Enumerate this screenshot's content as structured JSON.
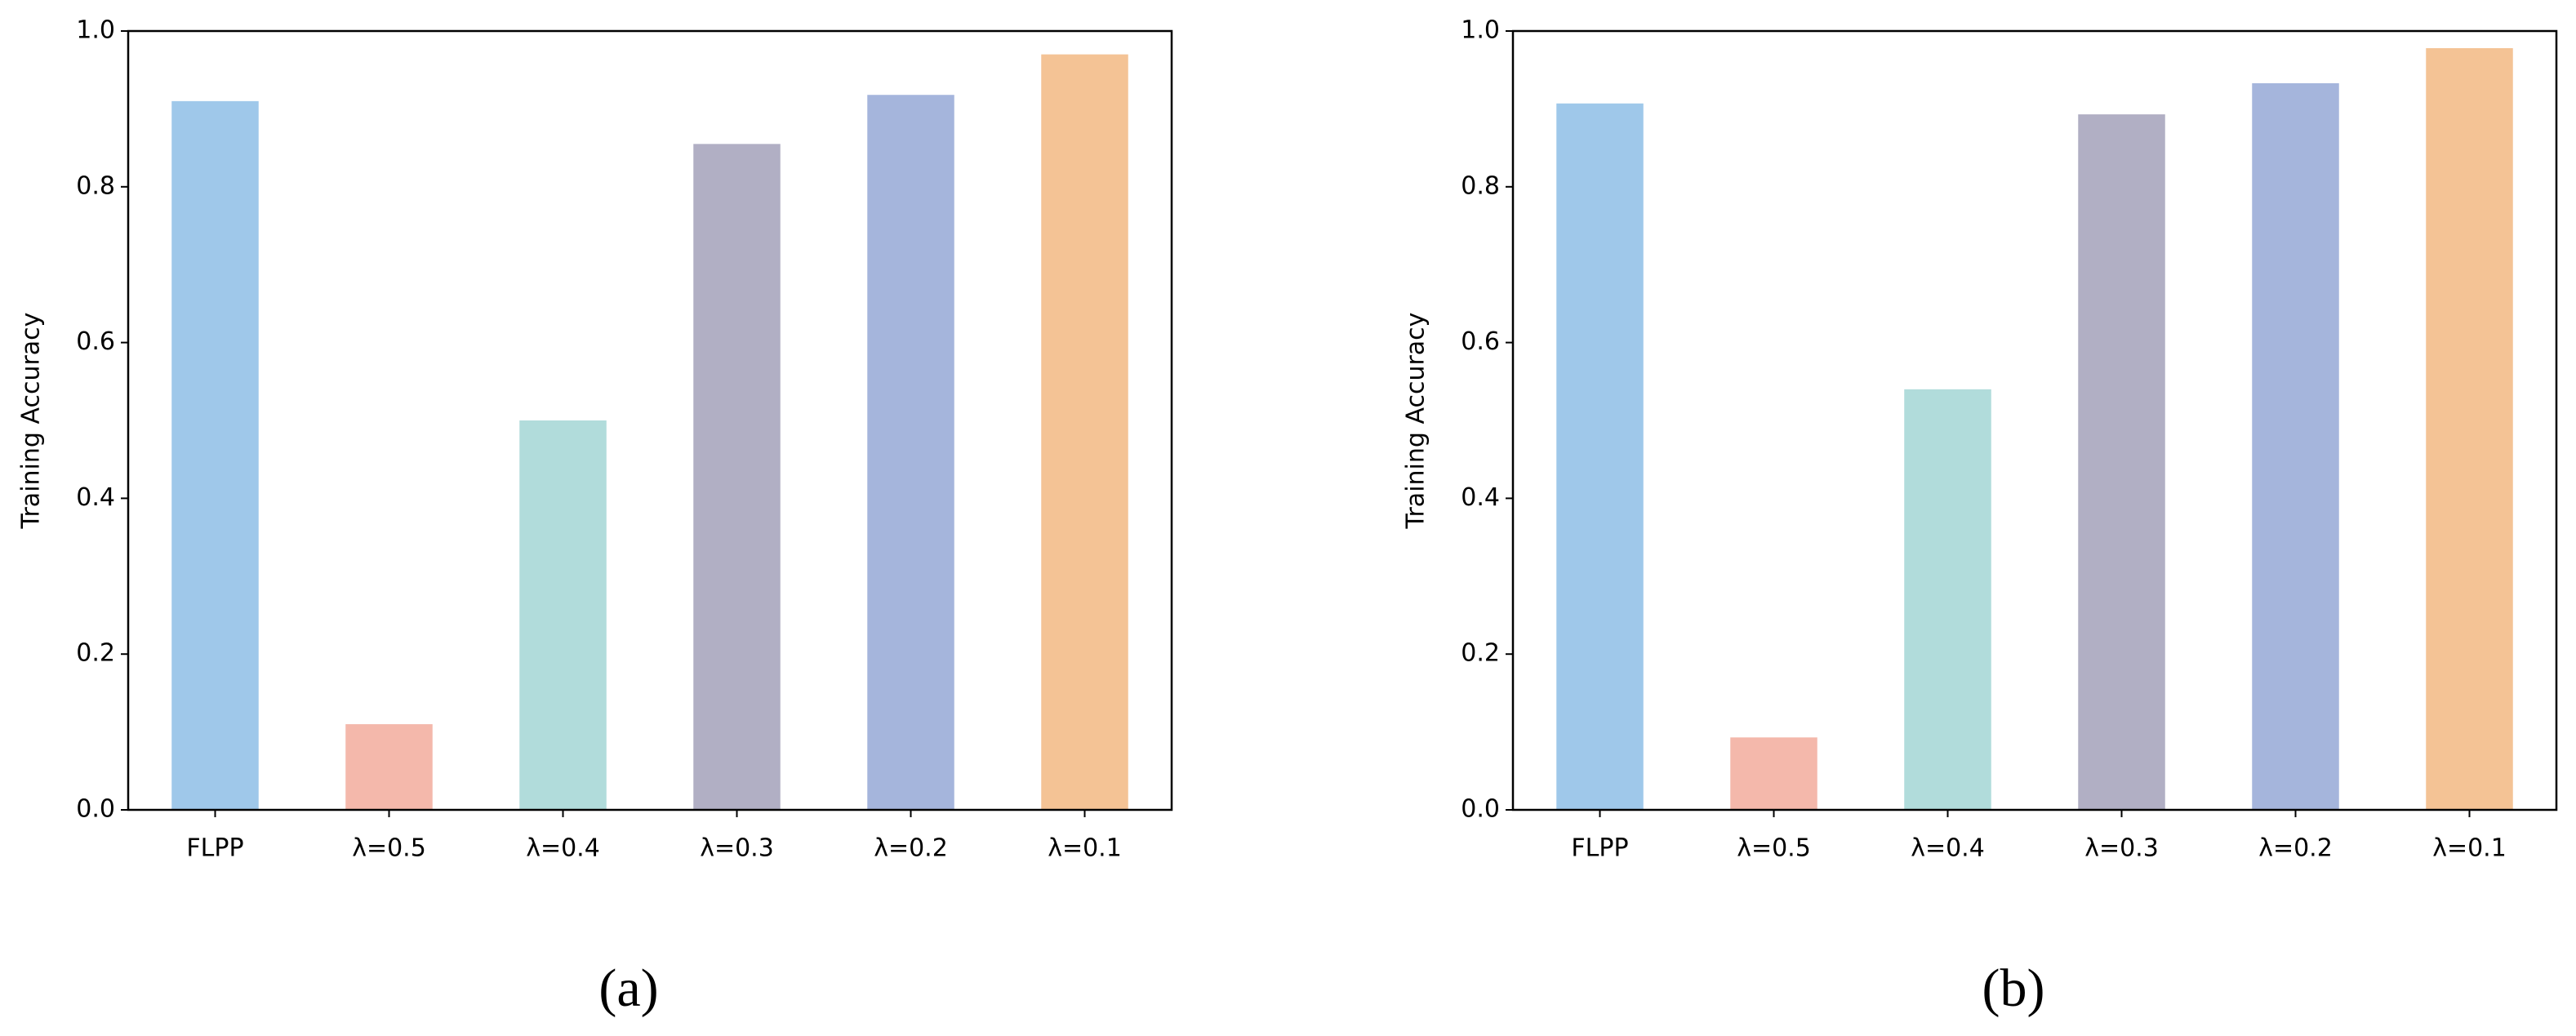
{
  "chart_data": [
    {
      "type": "bar",
      "ylabel": "Training Accuracy",
      "caption": "(a)",
      "categories": [
        "FLPP",
        "λ=0.5",
        "λ=0.4",
        "λ=0.3",
        "λ=0.2",
        "λ=0.1"
      ],
      "values": [
        0.91,
        0.11,
        0.5,
        0.855,
        0.918,
        0.97
      ],
      "colors": [
        "#9fc8ea",
        "#f4b8ab",
        "#b1dcdb",
        "#b1afc4",
        "#a5b5dc",
        "#f4c395"
      ],
      "ylim": [
        0,
        1
      ],
      "yticks": [
        {
          "value": 0,
          "label": "0.0"
        },
        0.2,
        0.4,
        0.6,
        0.8,
        {
          "value": 1,
          "label": "1.0"
        }
      ]
    },
    {
      "type": "bar",
      "ylabel": "Training Accuracy",
      "caption": "(b)",
      "categories": [
        "FLPP",
        "λ=0.5",
        "λ=0.4",
        "λ=0.3",
        "λ=0.2",
        "λ=0.1"
      ],
      "values": [
        0.907,
        0.093,
        0.54,
        0.893,
        0.933,
        0.978
      ],
      "colors": [
        "#9fc8ea",
        "#f4b8ab",
        "#b1dcdb",
        "#b1afc4",
        "#a5b5dc",
        "#f4c395"
      ],
      "ylim": [
        0,
        1
      ],
      "yticks": [
        {
          "value": 0,
          "label": "0.0"
        },
        0.2,
        0.4,
        0.6,
        0.8,
        {
          "value": 1,
          "label": "1.0"
        }
      ]
    }
  ]
}
